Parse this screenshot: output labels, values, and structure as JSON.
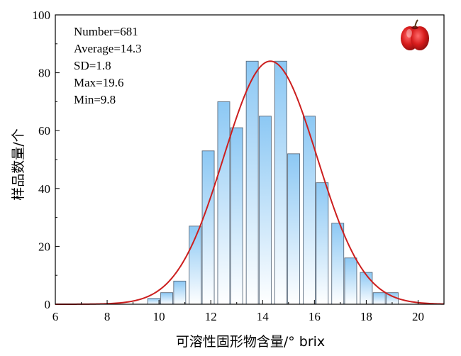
{
  "chart_data": {
    "type": "bar",
    "xlabel": "可溶性固形物含量/° brix",
    "ylabel": "样品数量/个",
    "xlim": [
      6,
      21
    ],
    "ylim": [
      0,
      100
    ],
    "x_ticks": [
      6,
      8,
      10,
      12,
      14,
      16,
      18,
      20
    ],
    "y_ticks": [
      0,
      20,
      40,
      60,
      80,
      100
    ],
    "bins": [
      {
        "center": 9.8,
        "value": 2
      },
      {
        "center": 10.3,
        "value": 4
      },
      {
        "center": 10.8,
        "value": 8
      },
      {
        "center": 11.4,
        "value": 27
      },
      {
        "center": 11.9,
        "value": 53
      },
      {
        "center": 12.5,
        "value": 70
      },
      {
        "center": 13.0,
        "value": 61
      },
      {
        "center": 13.6,
        "value": 84
      },
      {
        "center": 14.1,
        "value": 65
      },
      {
        "center": 14.7,
        "value": 84
      },
      {
        "center": 15.2,
        "value": 52
      },
      {
        "center": 15.8,
        "value": 65
      },
      {
        "center": 16.3,
        "value": 42
      },
      {
        "center": 16.9,
        "value": 28
      },
      {
        "center": 17.4,
        "value": 16
      },
      {
        "center": 18.0,
        "value": 11
      },
      {
        "center": 18.5,
        "value": 4
      },
      {
        "center": 19.0,
        "value": 4
      }
    ],
    "bin_width": 0.52,
    "fit_curve": {
      "type": "normal",
      "mean": 14.3,
      "sd": 1.8,
      "peak": 84
    },
    "stats": [
      "Number=681",
      "Average=14.3",
      "SD=1.8",
      "Max=19.6",
      "Min=9.8"
    ],
    "colors": {
      "bar_top": "#8cc8f4",
      "bar_bottom": "#ffffff",
      "bar_edge": "#5a6b7d",
      "curve": "#cc1f1f"
    },
    "icon": "apple-icon"
  }
}
